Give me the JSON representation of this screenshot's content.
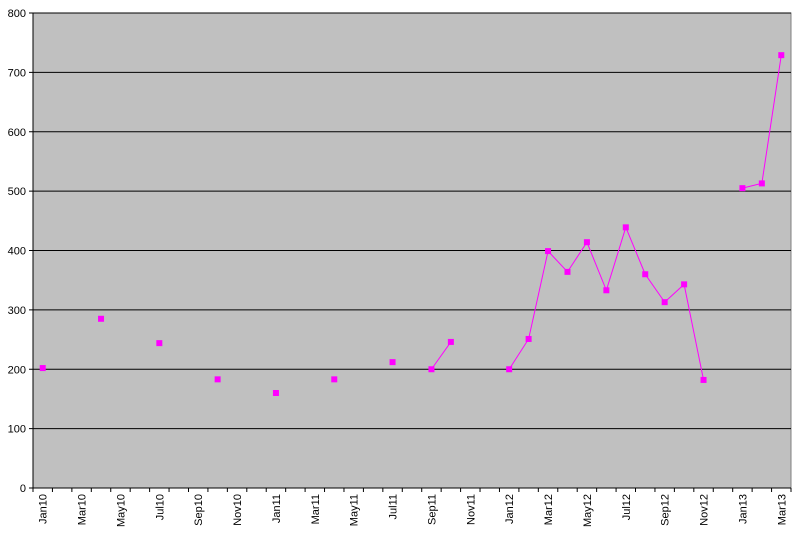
{
  "chart_data": {
    "type": "line",
    "categories": [
      "Jan10",
      null,
      "Mar10",
      null,
      "May10",
      null,
      "Jul10",
      null,
      "Sep10",
      null,
      "Nov10",
      null,
      "Jan11",
      null,
      "Mar11",
      null,
      "May11",
      null,
      "Jul11",
      null,
      "Sep11",
      null,
      "Nov11",
      null,
      "Jan12",
      null,
      "Mar12",
      null,
      "May12",
      null,
      "Jul12",
      null,
      "Sep12",
      null,
      "Nov12",
      null,
      "Jan13",
      null,
      "Mar13"
    ],
    "series": [
      {
        "color": "#ff00ff",
        "values": [
          202,
          null,
          null,
          285,
          null,
          null,
          244,
          null,
          null,
          183,
          null,
          null,
          160,
          null,
          null,
          183,
          null,
          null,
          212,
          null,
          200,
          246,
          null,
          null,
          200,
          251,
          399,
          364,
          414,
          333,
          439,
          360,
          313,
          343,
          182,
          null,
          505,
          513,
          729
        ]
      }
    ],
    "ylim": [
      0,
      800
    ],
    "yticks": [
      0,
      100,
      200,
      300,
      400,
      500,
      600,
      700,
      800
    ],
    "grid": true
  }
}
